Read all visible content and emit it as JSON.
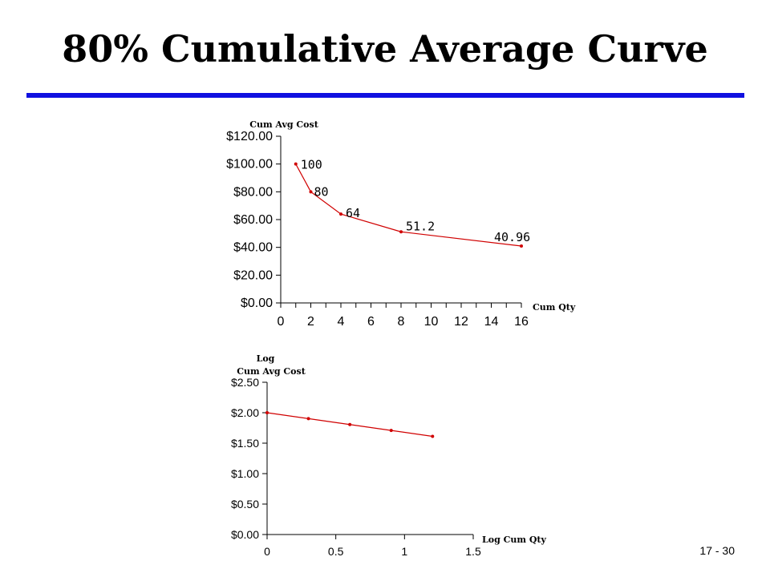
{
  "slide": {
    "title": "80% Cumulative Average Curve",
    "page_number": "17 - 30",
    "rule_color": "#1010e0"
  },
  "chart_data": [
    {
      "type": "line",
      "title": "",
      "xlabel": "Cum Qty",
      "ylabel": "Cum Avg Cost",
      "xlim": [
        0,
        16
      ],
      "ylim": [
        0,
        120
      ],
      "x_ticks": [
        "0",
        "2",
        "4",
        "6",
        "8",
        "10",
        "12",
        "14",
        "16"
      ],
      "y_ticks": [
        "$0.00",
        "$20.00",
        "$40.00",
        "$60.00",
        "$80.00",
        "$100.00",
        "$120.00"
      ],
      "x": [
        1,
        2,
        4,
        8,
        16
      ],
      "y": [
        100,
        80,
        64,
        51.2,
        40.96
      ],
      "data_labels": [
        "100",
        "80",
        "64",
        "51.2",
        "40.96"
      ],
      "line_color": "#d00000"
    },
    {
      "type": "line",
      "title": "",
      "xlabel": "Log Cum Qty",
      "ylabel_line1": "Log",
      "ylabel": "Cum Avg Cost",
      "xlim": [
        0,
        1.5
      ],
      "ylim": [
        0,
        2.5
      ],
      "x_ticks": [
        "0",
        "0.5",
        "1",
        "1.5"
      ],
      "y_ticks": [
        "$0.00",
        "$0.50",
        "$1.00",
        "$1.50",
        "$2.00",
        "$2.50"
      ],
      "x": [
        0,
        0.301,
        0.602,
        0.903,
        1.204
      ],
      "y": [
        2.0,
        1.903,
        1.806,
        1.709,
        1.612
      ],
      "line_color": "#d00000"
    }
  ]
}
